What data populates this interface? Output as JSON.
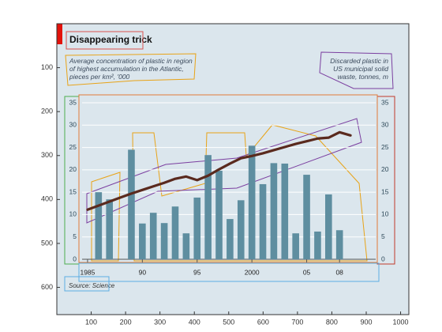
{
  "chart_data": [
    {
      "type": "image",
      "xlim": [
        0,
        1024
      ],
      "ylim": [
        662,
        0
      ],
      "xticks": [
        100,
        200,
        300,
        400,
        500,
        600,
        700,
        800,
        900,
        1000
      ],
      "yticks": [
        100,
        200,
        300,
        400,
        500,
        600
      ]
    },
    {
      "type": "bar",
      "title": "Disappearing trick",
      "subtitle_left": "Average concentration of plastic in region of highest accumulation in the Atlantic, pieces per km², '000",
      "subtitle_right": "Discarded plastic in US municipal solid waste, tonnes, m",
      "source": "Source: Science",
      "x": [
        1985,
        1986,
        1987,
        1988,
        1989,
        1990,
        1991,
        1992,
        1993,
        1994,
        1995,
        1996,
        1997,
        1998,
        1999,
        2000,
        2001,
        2002,
        2003,
        2004,
        2005,
        2006,
        2007,
        2008,
        2009
      ],
      "xlim": [
        1984.5,
        2011.3
      ],
      "xticks": [
        1985,
        {
          "value": 1990,
          "label": "90"
        },
        {
          "value": 1995,
          "label": "95"
        },
        2000,
        {
          "value": 2005,
          "label": "05"
        },
        {
          "value": 2008,
          "label": "08"
        }
      ],
      "ylim": [
        0,
        35
      ],
      "yticks": [
        0,
        5,
        10,
        15,
        20,
        25,
        30,
        35
      ],
      "y2lim": [
        0,
        35
      ],
      "y2ticks": [
        0,
        5,
        10,
        15,
        20,
        25,
        30,
        35
      ],
      "grid": true,
      "series": [
        {
          "type": "bar",
          "color": "#5e8ea0",
          "values": [
            null,
            15,
            13.4,
            null,
            24.5,
            8,
            10.4,
            8.1,
            11.8,
            5.8,
            13.8,
            23.3,
            19.8,
            9,
            13.2,
            25.4,
            16.8,
            21.5,
            21.4,
            5.8,
            18.9,
            6.2,
            14.5,
            6.5,
            null
          ]
        },
        {
          "type": "line",
          "axis": "y2",
          "color": "#5a2a1e",
          "values": [
            11.1,
            12.0,
            12.9,
            13.8,
            14.7,
            15.5,
            16.3,
            17.1,
            18.0,
            18.5,
            17.7,
            18.7,
            20.1,
            21.4,
            22.6,
            23.1,
            23.7,
            24.4,
            25.1,
            25.8,
            26.4,
            27.0,
            27.2,
            28.4,
            27.7
          ]
        }
      ]
    }
  ]
}
